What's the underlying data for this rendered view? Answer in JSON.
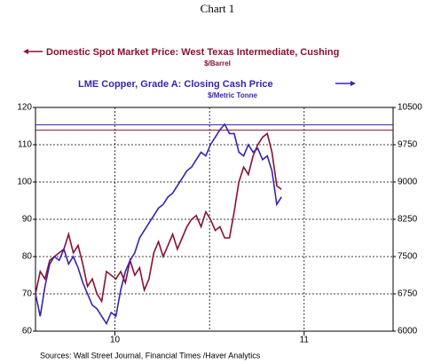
{
  "chart_data": {
    "type": "line",
    "title": "Chart 1",
    "source": "Sources:  Wall Street Journal, Financial Times /Haver Analytics",
    "x": [
      9.58,
      9.605,
      9.63,
      9.655,
      9.68,
      9.705,
      9.73,
      9.755,
      9.78,
      9.805,
      9.83,
      9.855,
      9.88,
      9.905,
      9.93,
      9.955,
      9.98,
      10.005,
      10.03,
      10.055,
      10.08,
      10.105,
      10.13,
      10.155,
      10.18,
      10.205,
      10.23,
      10.255,
      10.28,
      10.305,
      10.33,
      10.355,
      10.38,
      10.405,
      10.43,
      10.455,
      10.48,
      10.505,
      10.53,
      10.555,
      10.58,
      10.605,
      10.63,
      10.655,
      10.68,
      10.705,
      10.73,
      10.755,
      10.78,
      10.805,
      10.83,
      10.855,
      10.88
    ],
    "series": [
      {
        "name": "Domestic Spot Market Price: West Texas Intermediate, Cushing",
        "unit": "$/Barrel",
        "color": "#8b1030",
        "axis": "y",
        "values": [
          70,
          76,
          74,
          79,
          80,
          81,
          82,
          86,
          81,
          83,
          78,
          72,
          74,
          70,
          68,
          76,
          75,
          74,
          76,
          73,
          79,
          75,
          77,
          71,
          74,
          81,
          84,
          80,
          83,
          86,
          82,
          85,
          88,
          90,
          91,
          88,
          92,
          90,
          87,
          88,
          85,
          85,
          92,
          100,
          104,
          102,
          107,
          110,
          112,
          113,
          108,
          99,
          98
        ]
      },
      {
        "name": "LME Copper, Grade A: Closing Cash Price",
        "unit": "$/Metric Tonne",
        "color": "#3a22b0",
        "axis": "y2",
        "values": [
          6750,
          6300,
          6900,
          7350,
          7500,
          7425,
          7650,
          7350,
          7500,
          7275,
          6975,
          6750,
          6525,
          6450,
          6300,
          6150,
          6375,
          6300,
          6825,
          7200,
          7425,
          7575,
          7875,
          8025,
          8175,
          8325,
          8475,
          8550,
          8700,
          8775,
          8925,
          9075,
          9225,
          9300,
          9450,
          9600,
          9525,
          9750,
          9900,
          10050,
          10162,
          9975,
          9975,
          9600,
          9525,
          9750,
          9600,
          9675,
          9450,
          9525,
          9225,
          8550,
          8700
        ]
      }
    ],
    "reference_lines": [
      {
        "value": 113.9,
        "axis": "y",
        "color": "#8b1030"
      },
      {
        "value": 10150,
        "axis": "y2",
        "color": "#3a22b0"
      }
    ],
    "xlim": [
      9.58,
      11.47
    ],
    "xticks": [
      10,
      11
    ],
    "x_gridlines": [
      10,
      10.5,
      11
    ],
    "ylim": [
      60,
      120
    ],
    "yticks": [
      60,
      70,
      80,
      90,
      100,
      110,
      120
    ],
    "y2lim": [
      6000,
      10500
    ],
    "y2ticks": [
      6000,
      6750,
      7500,
      8250,
      9000,
      9750,
      10500
    ],
    "grid": true
  }
}
